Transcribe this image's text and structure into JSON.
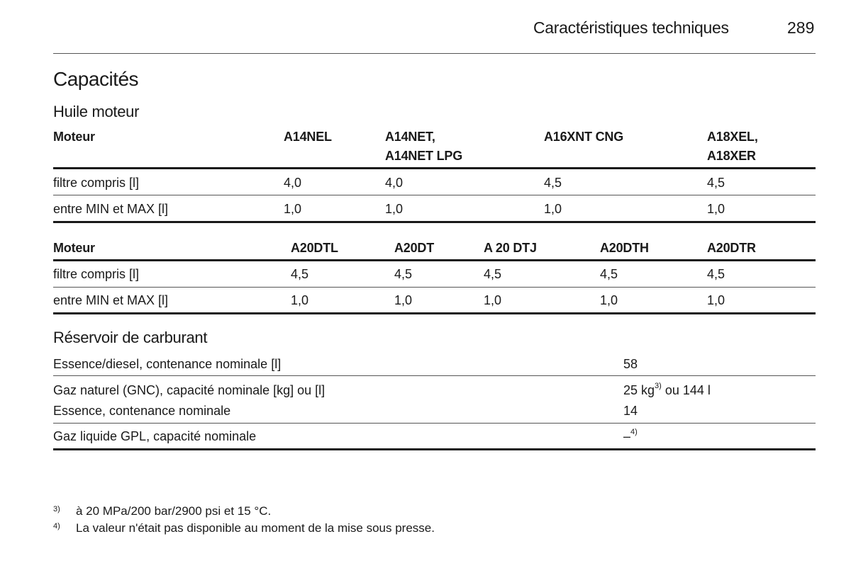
{
  "header": {
    "section": "Caractéristiques techniques",
    "page_number": "289"
  },
  "title": "Capacités",
  "engine_oil": {
    "heading": "Huile moteur",
    "table1": {
      "header": [
        "Moteur",
        "A14NEL",
        "A14NET,\nA14NET LPG",
        "A16XNT CNG",
        "A18XEL,\nA18XER"
      ],
      "rows": [
        [
          "filtre compris [l]",
          "4,0",
          "4,0",
          "4,5",
          "4,5"
        ],
        [
          "entre MIN et MAX [l]",
          "1,0",
          "1,0",
          "1,0",
          "1,0"
        ]
      ]
    },
    "table2": {
      "header": [
        "Moteur",
        "A20DTL",
        "A20DT",
        "A 20 DTJ",
        "A20DTH",
        "A20DTR"
      ],
      "rows": [
        [
          "filtre compris [l]",
          "4,5",
          "4,5",
          "4,5",
          "4,5",
          "4,5"
        ],
        [
          "entre MIN et MAX [l]",
          "1,0",
          "1,0",
          "1,0",
          "1,0",
          "1,0"
        ]
      ]
    }
  },
  "fuel_tank": {
    "heading": "Réservoir de carburant",
    "rows": [
      {
        "label": "Essence/diesel, contenance nominale [l]",
        "value": "58"
      },
      {
        "label": "Gaz naturel (GNC), capacité nominale [kg] ou [l]",
        "value_pre": "25 kg",
        "value_sup": "3)",
        "value_post": " ou 144 l"
      },
      {
        "label": "Essence, contenance nominale",
        "value": "14"
      },
      {
        "label": "Gaz liquide GPL, capacité nominale",
        "value_pre": "–",
        "value_sup": "4)"
      }
    ]
  },
  "footnotes": [
    {
      "num": "3)",
      "text": "à 20 MPa/200 bar/2900 psi et 15 °C."
    },
    {
      "num": "4)",
      "text": "La valeur n'était pas disponible au moment de la mise sous presse."
    }
  ]
}
